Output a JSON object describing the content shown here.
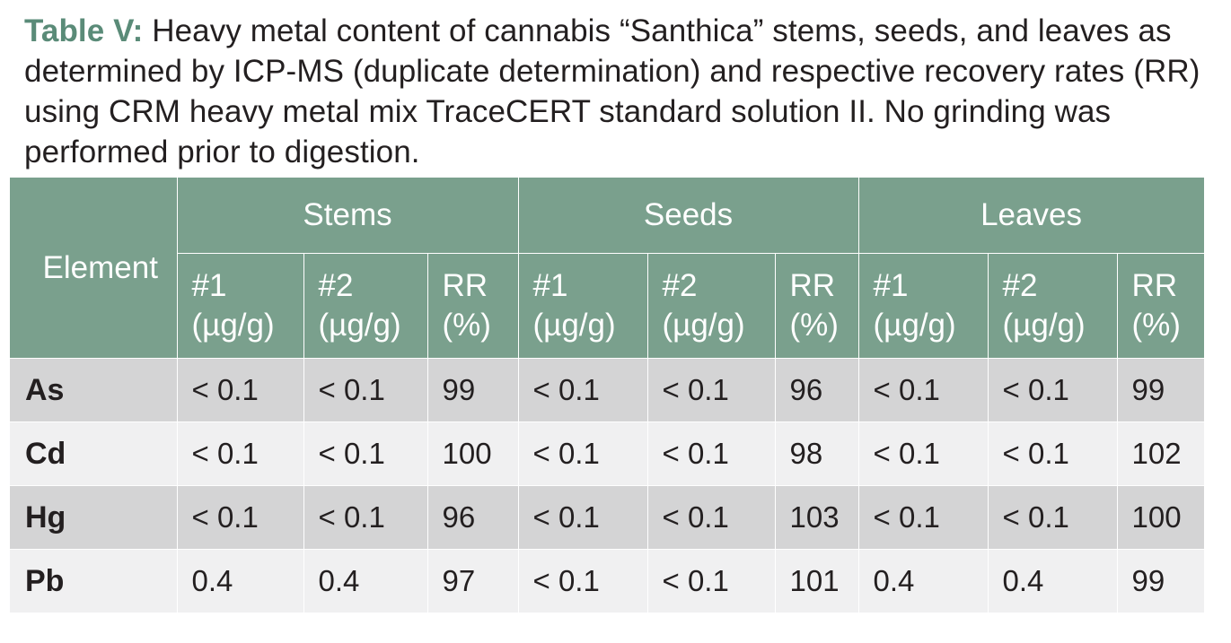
{
  "caption": {
    "label": "Table V:",
    "text": " Heavy metal content of cannabis “Santhica” stems, seeds, and leaves as determined by ICP-MS (duplicate determination) and respective recovery rates (RR) using CRM heavy metal mix TraceCERT standard solution II. No grinding was performed prior to digestion."
  },
  "table": {
    "element_header": "Element",
    "groups": [
      "Stems",
      "Seeds",
      "Leaves"
    ],
    "subheaders": [
      [
        "#1",
        "(µg/g)"
      ],
      [
        "#2",
        "(µg/g)"
      ],
      [
        "RR",
        "(%)"
      ],
      [
        "#1",
        "(µg/g)"
      ],
      [
        "#2",
        "(µg/g)"
      ],
      [
        "RR",
        "(%)"
      ],
      [
        "#1",
        "(µg/g)"
      ],
      [
        "#2",
        "(µg/g)"
      ],
      [
        "RR",
        "(%)"
      ]
    ],
    "rows": [
      {
        "element": "As",
        "cells": [
          "< 0.1",
          "< 0.1",
          "99",
          "< 0.1",
          "< 0.1",
          "96",
          "< 0.1",
          "< 0.1",
          "99"
        ]
      },
      {
        "element": "Cd",
        "cells": [
          "< 0.1",
          "< 0.1",
          "100",
          "< 0.1",
          "< 0.1",
          "98",
          "< 0.1",
          "< 0.1",
          "102"
        ]
      },
      {
        "element": "Hg",
        "cells": [
          "< 0.1",
          "< 0.1",
          "96",
          "< 0.1",
          "< 0.1",
          "103",
          "< 0.1",
          "< 0.1",
          "100"
        ]
      },
      {
        "element": "Pb",
        "cells": [
          "0.4",
          "0.4",
          "97",
          "< 0.1",
          "< 0.1",
          "101",
          "0.4",
          "0.4",
          "99"
        ]
      }
    ]
  },
  "colors": {
    "header_bg": "#7aa08d",
    "caption_label": "#5a8b78",
    "row_dark": "#d4d4d5",
    "row_light": "#f0f0f1"
  }
}
